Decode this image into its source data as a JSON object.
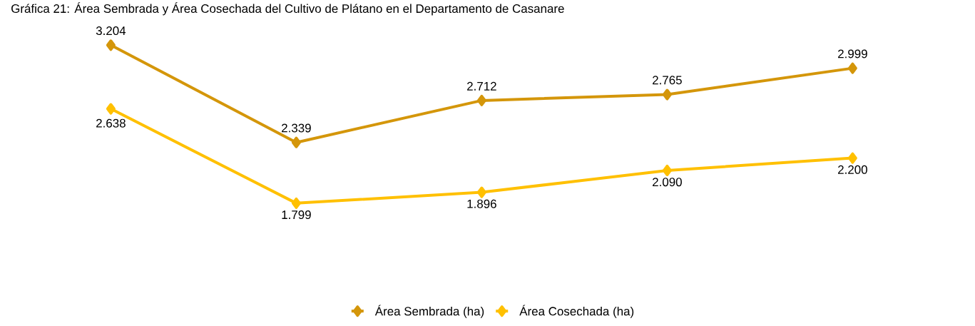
{
  "chart_data": {
    "type": "line",
    "title": "Gráfica 21: Área Sembrada y Área Cosechada del Cultivo de Plátano en el Departamento de Casanare",
    "categories": [
      null,
      null,
      null,
      null,
      null
    ],
    "series": [
      {
        "name": "Área Sembrada (ha)",
        "color": "#d4960a",
        "values": [
          3204,
          2339,
          2712,
          2765,
          2999
        ],
        "value_labels": [
          "3.204",
          "2.339",
          "2.712",
          "2.765",
          "2.999"
        ]
      },
      {
        "name": "Área Cosechada (ha)",
        "color": "#ffc000",
        "values": [
          2638,
          1799,
          1896,
          2090,
          2200
        ],
        "value_labels": [
          "2.638",
          "1.799",
          "1.896",
          "2.090",
          "2.200"
        ]
      }
    ],
    "legend": "bottom",
    "marker": "diamond",
    "line_style": "solid"
  }
}
